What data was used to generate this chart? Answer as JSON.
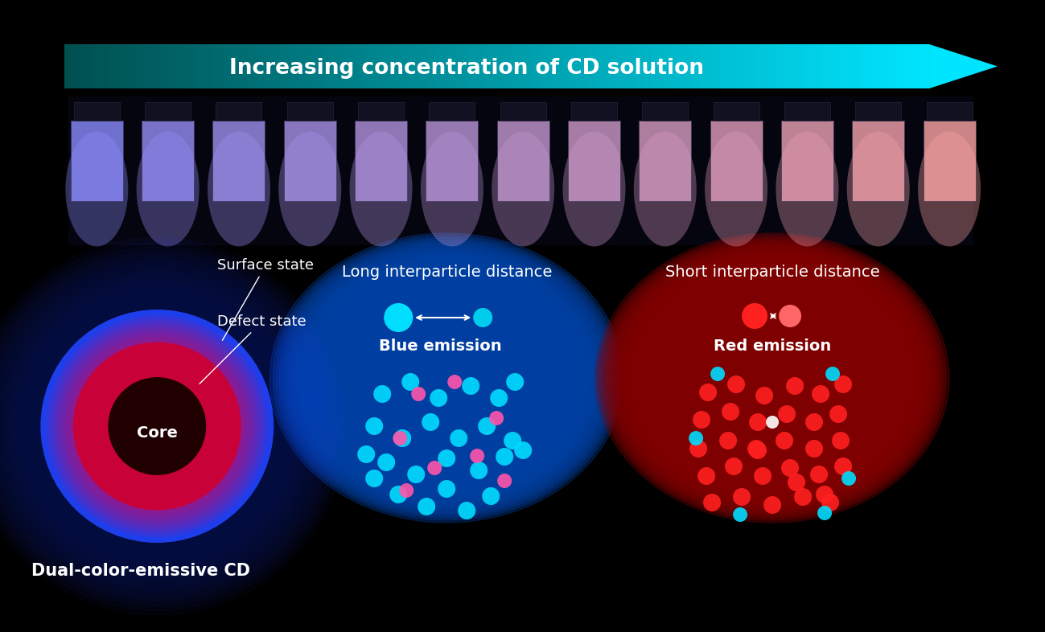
{
  "background_color": "#000000",
  "arrow_text": "Increasing concentration of CD solution",
  "arrow_color_left": "#004d4d",
  "arrow_color_right": "#00e5ff",
  "cd_label": "Dual-color-emissive CD",
  "core_label": "Core",
  "surface_label": "Surface state",
  "defect_label": "Defect state",
  "blue_title": "Long interparticle distance",
  "blue_sub": "Blue emission",
  "red_title": "Short interparticle distance",
  "red_sub": "Red emission",
  "blue_dot_color": "#00e5ff",
  "red_dot_color": "#ff2020",
  "pink_dot_color": "#ff69b4",
  "white_color": "#ffffff",
  "cd_core_color": "#1a0000",
  "cd_red_inner": "#ff0000",
  "cd_red_outer": "#cc0066",
  "cd_blue_color": "#3333ff",
  "cd_blue_glow": "#0000cc"
}
